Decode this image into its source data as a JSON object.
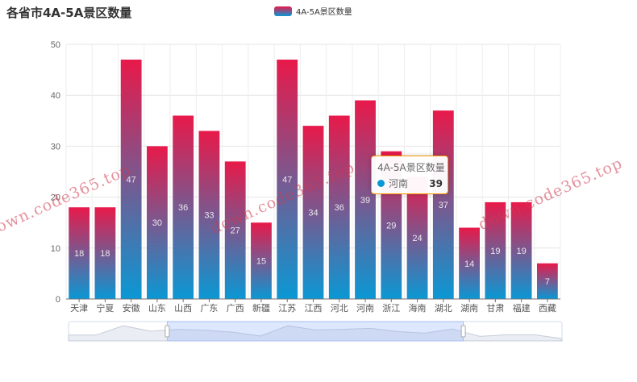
{
  "chart_data": {
    "type": "bar",
    "title": "各省市4A-5A景区数量",
    "categories": [
      "天津",
      "宁夏",
      "安徽",
      "山东",
      "山西",
      "广东",
      "广西",
      "新疆",
      "江苏",
      "江西",
      "河北",
      "河南",
      "浙江",
      "海南",
      "湖北",
      "湖南",
      "甘肃",
      "福建",
      "西藏"
    ],
    "series": [
      {
        "name": "4A-5A景区数量",
        "values": [
          18,
          18,
          47,
          30,
          36,
          33,
          27,
          15,
          47,
          34,
          36,
          39,
          29,
          24,
          37,
          14,
          19,
          19,
          7
        ]
      }
    ],
    "ylim": [
      0,
      50
    ],
    "yticks": [
      0,
      10,
      20,
      30,
      40,
      50
    ],
    "grid": true,
    "legend": "top-center",
    "colors": {
      "top": "#e8194a",
      "bottom": "#0a98d4"
    },
    "datazoom": {
      "start": 0.2,
      "end": 0.8
    }
  },
  "tooltip": {
    "title": "4A-5A景区数量",
    "name": "河南",
    "value": "39"
  },
  "watermark": "down.code365.top"
}
